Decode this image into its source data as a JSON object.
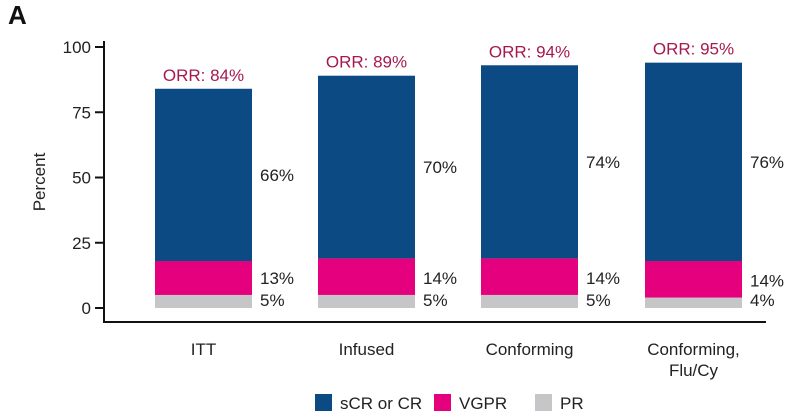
{
  "panel_letter": "A",
  "chart_data": {
    "type": "bar",
    "stacked": true,
    "ylabel": "Percent",
    "ylim": [
      0,
      100
    ],
    "yticks": [
      0,
      25,
      50,
      75,
      100
    ],
    "categories": [
      "ITT",
      "Infused",
      "Conforming",
      "Conforming, Flu/Cy"
    ],
    "category_lines": [
      [
        "ITT"
      ],
      [
        "Infused"
      ],
      [
        "Conforming"
      ],
      [
        "Conforming,",
        "Flu/Cy"
      ]
    ],
    "totals": [
      84,
      89,
      94,
      95
    ],
    "totals_labels": [
      "ORR: 84%",
      "ORR: 89%",
      "ORR: 94%",
      "ORR: 95%"
    ],
    "series": [
      {
        "name": "PR",
        "color": "#c6c6c9",
        "values": [
          5,
          5,
          5,
          4
        ],
        "labels": [
          "5%",
          "5%",
          "5%",
          "4%"
        ]
      },
      {
        "name": "VGPR",
        "color": "#e5007e",
        "values": [
          13,
          14,
          14,
          14
        ],
        "labels": [
          "13%",
          "14%",
          "14%",
          "14%"
        ]
      },
      {
        "name": "sCR or CR",
        "color": "#0b4a82",
        "values": [
          66,
          70,
          74,
          76
        ],
        "labels": [
          "66%",
          "70%",
          "74%",
          "76%"
        ]
      }
    ],
    "legend_order": [
      "sCR or CR",
      "VGPR",
      "PR"
    ],
    "legend_position": "bottom",
    "colors": {
      "orr_text": "#a5194f",
      "axis": "#111111"
    },
    "grid": false
  }
}
